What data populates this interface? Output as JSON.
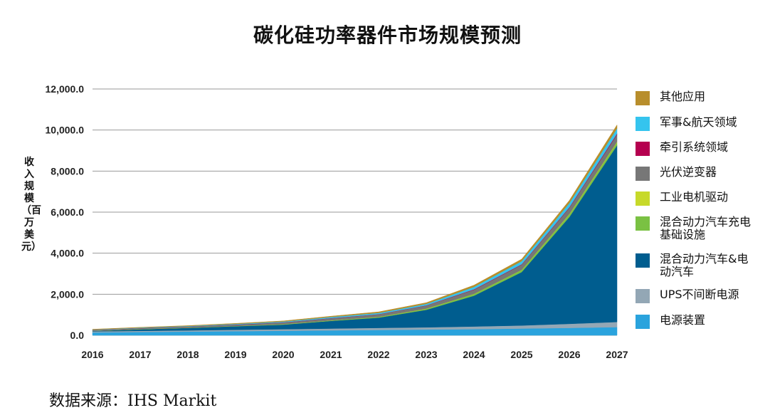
{
  "title": "碳化硅功率器件市场规模预测",
  "ylabel": "收入规模（百万美元）",
  "source": "数据来源：IHS Markit",
  "chart_data": {
    "type": "area",
    "stacked": true,
    "title": "碳化硅功率器件市场规模预测",
    "ylabel": "收入规模（百万美元）",
    "xlabel": "",
    "x": [
      "2016",
      "2017",
      "2018",
      "2019",
      "2020",
      "2021",
      "2022",
      "2023",
      "2024",
      "2025",
      "2026",
      "2027"
    ],
    "ylim": [
      0,
      12000
    ],
    "yticks": [
      "0.0",
      "2,000.0",
      "4,000.0",
      "6,000.0",
      "8,000.0",
      "10,000.0",
      "12,000.0"
    ],
    "grid": true,
    "legend_position": "right",
    "series": [
      {
        "name": "电源装置",
        "color": "#2aa3dd",
        "values": [
          140,
          160,
          180,
          200,
          220,
          240,
          260,
          280,
          300,
          330,
          360,
          400
        ]
      },
      {
        "name": "UPS不间断电源",
        "color": "#93a7b5",
        "values": [
          50,
          55,
          60,
          70,
          80,
          90,
          100,
          110,
          130,
          150,
          200,
          250
        ]
      },
      {
        "name": "混合动力汽车&电动汽车",
        "color": "#005d8f",
        "values": [
          20,
          80,
          120,
          170,
          220,
          370,
          500,
          850,
          1500,
          2600,
          5200,
          8600
        ]
      },
      {
        "name": "混合动力汽车充电基础设施",
        "color": "#7ac143",
        "values": [
          5,
          5,
          5,
          10,
          10,
          20,
          30,
          50,
          80,
          100,
          130,
          150
        ]
      },
      {
        "name": "工业电机驱动",
        "color": "#c7d92a",
        "values": [
          5,
          5,
          5,
          5,
          10,
          10,
          10,
          10,
          10,
          10,
          20,
          30
        ]
      },
      {
        "name": "光伏逆变器",
        "color": "#777777",
        "values": [
          30,
          40,
          50,
          60,
          80,
          100,
          120,
          150,
          200,
          250,
          300,
          350
        ]
      },
      {
        "name": "牵引系统领域",
        "color": "#b5004f",
        "values": [
          5,
          5,
          5,
          10,
          10,
          10,
          10,
          10,
          20,
          20,
          30,
          50
        ]
      },
      {
        "name": "军事&航天领域",
        "color": "#35c4ee",
        "values": [
          20,
          20,
          25,
          30,
          40,
          50,
          60,
          70,
          120,
          150,
          200,
          250
        ]
      },
      {
        "name": "其他应用",
        "color": "#b88e2c",
        "values": [
          20,
          20,
          20,
          25,
          30,
          40,
          50,
          60,
          80,
          100,
          130,
          170
        ]
      }
    ]
  }
}
